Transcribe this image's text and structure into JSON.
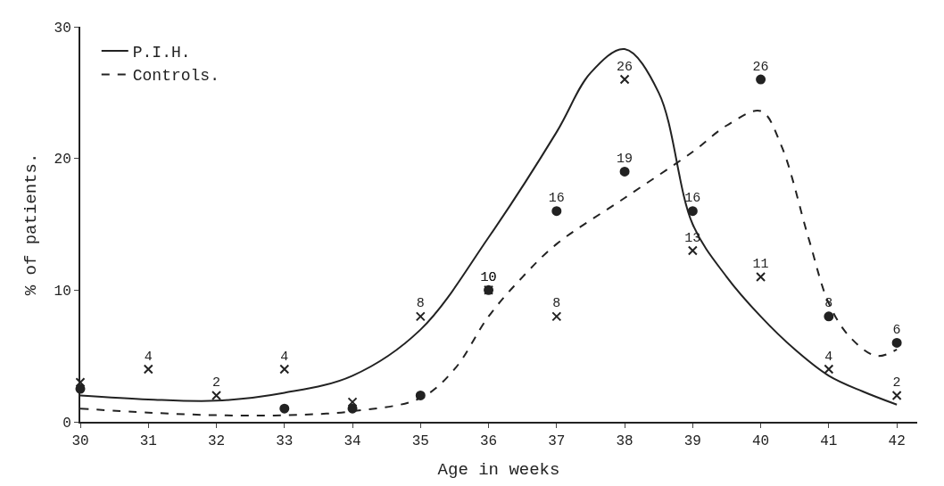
{
  "chart_data": {
    "type": "line",
    "xlabel": "Age in weeks",
    "ylabel": "% of patients.",
    "xlim": [
      30,
      42.3
    ],
    "ylim": [
      0,
      30
    ],
    "xticks": [
      30,
      31,
      32,
      33,
      34,
      35,
      36,
      37,
      38,
      39,
      40,
      41,
      42
    ],
    "yticks": [
      0,
      10,
      20,
      30
    ],
    "legend": "top left",
    "series": [
      {
        "name": "P.I.H.",
        "line_style": "solid",
        "color": "#222222",
        "x": [
          30,
          31,
          32,
          33,
          34,
          35,
          36,
          37,
          37.5,
          38,
          38.5,
          39,
          39.5,
          40,
          40.5,
          41,
          41.5,
          42
        ],
        "values": [
          2,
          1.7,
          1.6,
          2.2,
          3.5,
          7,
          14,
          22,
          26.5,
          28.3,
          25,
          15,
          11,
          8,
          5.5,
          3.5,
          2.3,
          1.3
        ]
      },
      {
        "name": "Controls.",
        "line_style": "dashed",
        "color": "#222222",
        "x": [
          30,
          31,
          32,
          33,
          34,
          35,
          35.5,
          36,
          36.5,
          37,
          38,
          39,
          39.5,
          40,
          40.3,
          40.7,
          41,
          41.3,
          41.7,
          42
        ],
        "values": [
          1,
          0.7,
          0.5,
          0.5,
          0.8,
          1.8,
          4,
          8,
          11,
          13.5,
          17,
          20.5,
          22.5,
          23.6,
          21,
          14,
          9,
          6.5,
          5,
          5.5
        ]
      },
      {
        "type": "scatter",
        "marker": "cross",
        "color": "#222222",
        "x": [
          30,
          31,
          32,
          33,
          34,
          35,
          36,
          37,
          38,
          39,
          40,
          41,
          42
        ],
        "values": [
          3,
          4,
          2,
          4,
          1.5,
          8,
          10,
          8,
          26,
          13,
          11,
          4,
          2
        ],
        "value_labels": [
          null,
          "4",
          "2",
          "4",
          null,
          "8",
          "10",
          "8",
          "26",
          "13",
          "11",
          "4",
          "2"
        ]
      },
      {
        "type": "scatter",
        "marker": "circle",
        "color": "#222222",
        "x": [
          30,
          33,
          34,
          35,
          36,
          37,
          38,
          39,
          40,
          41,
          42
        ],
        "values": [
          2.5,
          1,
          1,
          2,
          10,
          16,
          19,
          16,
          26,
          8,
          6
        ],
        "value_labels": [
          null,
          null,
          null,
          null,
          "10",
          "16",
          "19",
          "16",
          "26",
          "8",
          "6"
        ]
      }
    ]
  }
}
